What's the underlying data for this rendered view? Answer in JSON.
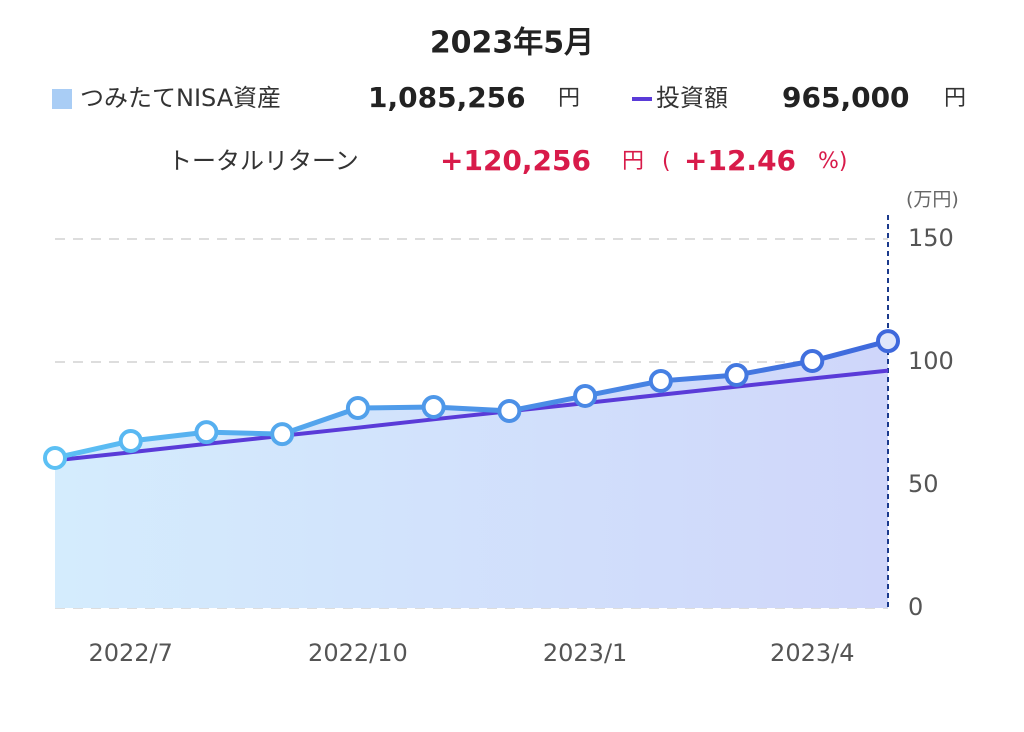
{
  "chart_data": {
    "type": "line",
    "title": "2023年5月",
    "summary": {
      "asset_amount": "1,085,256",
      "invest_amount": "965,000",
      "currency": "円",
      "return_label": "トータルリターン",
      "return_amount": "+120,256",
      "paren_open": "(",
      "return_percent": "+12.46",
      "percent_close": "%)"
    },
    "y_unit": "(万円)",
    "categories": [
      null,
      "2022/7",
      null,
      null,
      "2022/10",
      null,
      null,
      "2023/1",
      null,
      null,
      "2023/4",
      null
    ],
    "series": [
      {
        "name": "つみたてNISA資産",
        "color": "#4a8ee6",
        "values": [
          61,
          67.9,
          71.5,
          70.7,
          81.3,
          81.7,
          80.1,
          86.2,
          92.3,
          94.7,
          100.4,
          108.5
        ]
      },
      {
        "name": "投資額",
        "color": "#5a3bd8",
        "values": [
          60,
          63.3,
          66.7,
          70,
          73.3,
          76.7,
          80,
          83.3,
          86.7,
          90,
          93.3,
          96.5
        ]
      }
    ],
    "ylim": [
      0,
      150
    ],
    "yticks": [
      0,
      50,
      100,
      150
    ],
    "grid": true
  }
}
